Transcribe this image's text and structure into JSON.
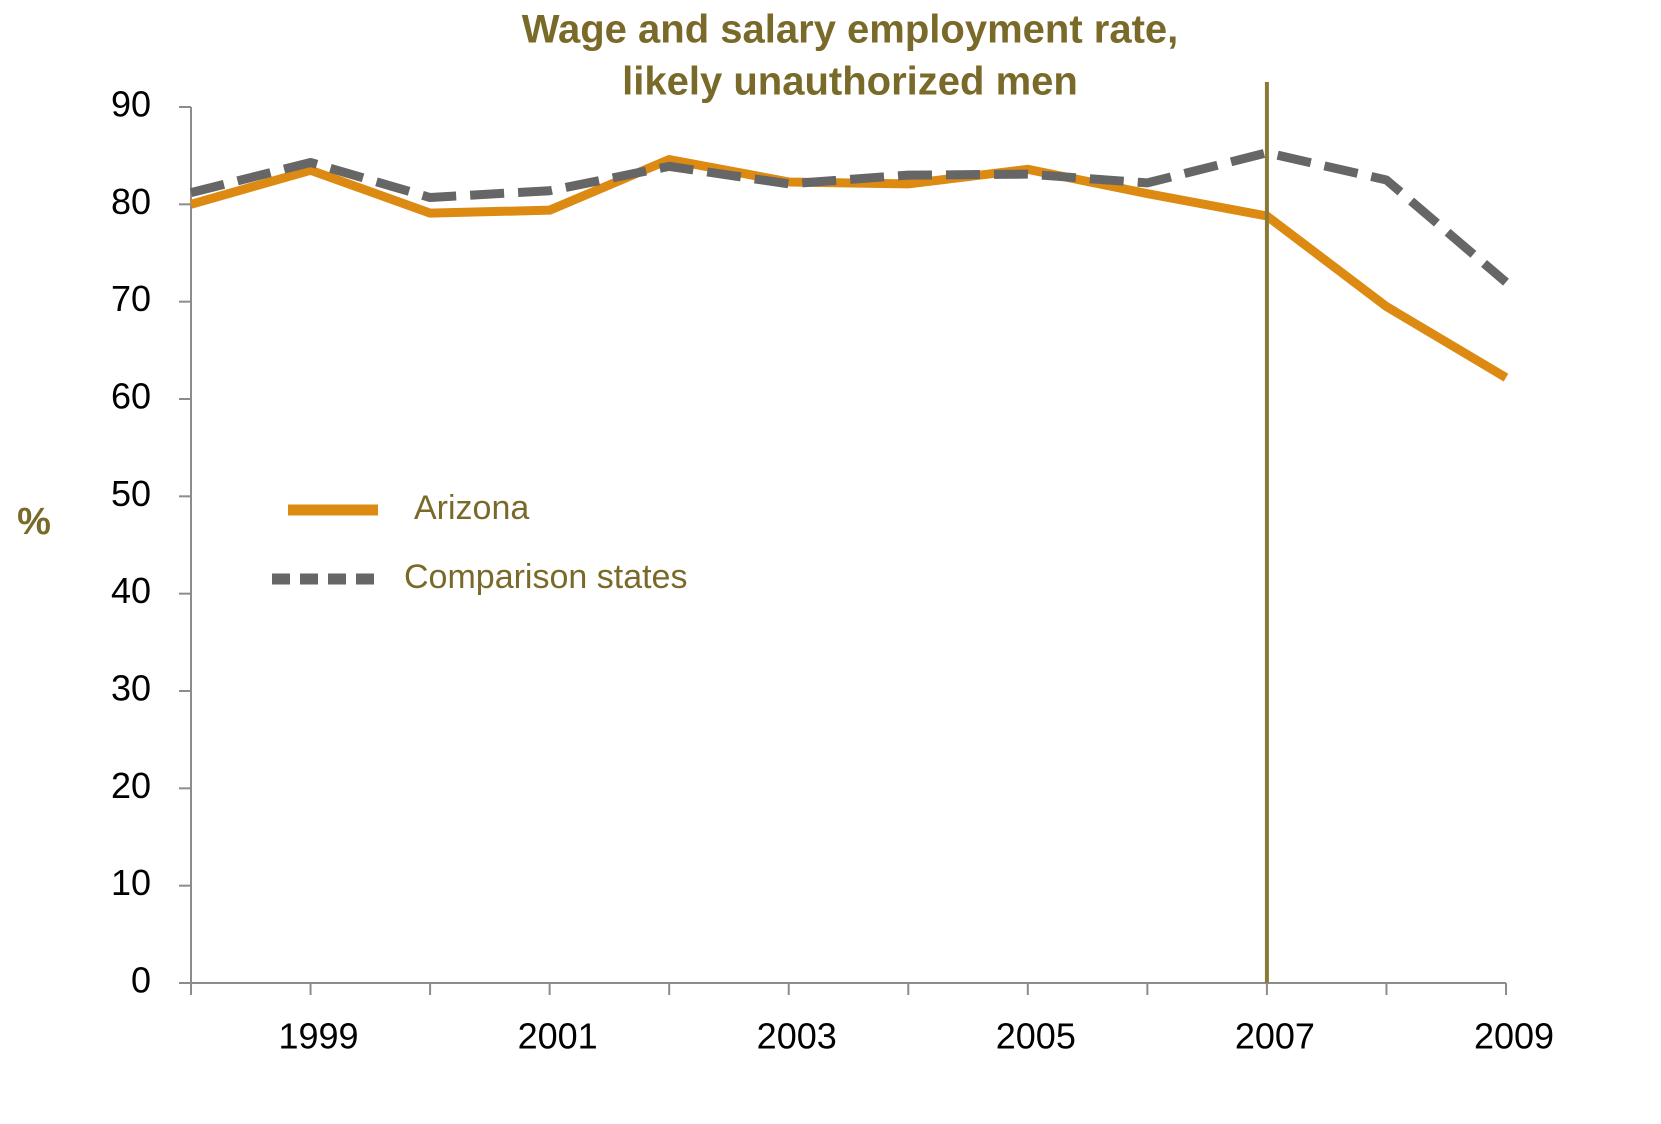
{
  "chart_data": {
    "type": "line",
    "title": "Wage and salary employment rate,",
    "subtitle": "likely unauthorized men",
    "y_label": "%",
    "x": [
      1998,
      1999,
      2000,
      2001,
      2002,
      2003,
      2004,
      2005,
      2006,
      2007,
      2008,
      2009
    ],
    "series": [
      {
        "name": "Arizona",
        "color": "#dc8a12",
        "dash": false,
        "values": [
          80.0,
          83.5,
          79.1,
          79.4,
          84.6,
          82.3,
          82.1,
          83.6,
          81.1,
          78.8,
          69.5,
          62.2
        ]
      },
      {
        "name": "Comparison states",
        "color": "#666666",
        "dash": true,
        "values": [
          81.2,
          84.3,
          80.7,
          81.4,
          83.9,
          82.1,
          83.0,
          83.1,
          82.2,
          85.3,
          82.5,
          72.0
        ]
      }
    ],
    "xlim": [
      1998,
      2009
    ],
    "xticks": [
      1999,
      2001,
      2003,
      2005,
      2007,
      2009
    ],
    "x_minor_ticks": [
      1998,
      2000,
      2002,
      2004,
      2006,
      2008
    ],
    "ylim": [
      0,
      90
    ],
    "yticks": [
      0,
      10,
      20,
      30,
      40,
      50,
      60,
      70,
      80,
      90
    ],
    "vline": 2007,
    "vline_color": "#8a7a35",
    "legend": "center-left",
    "grid": false
  }
}
